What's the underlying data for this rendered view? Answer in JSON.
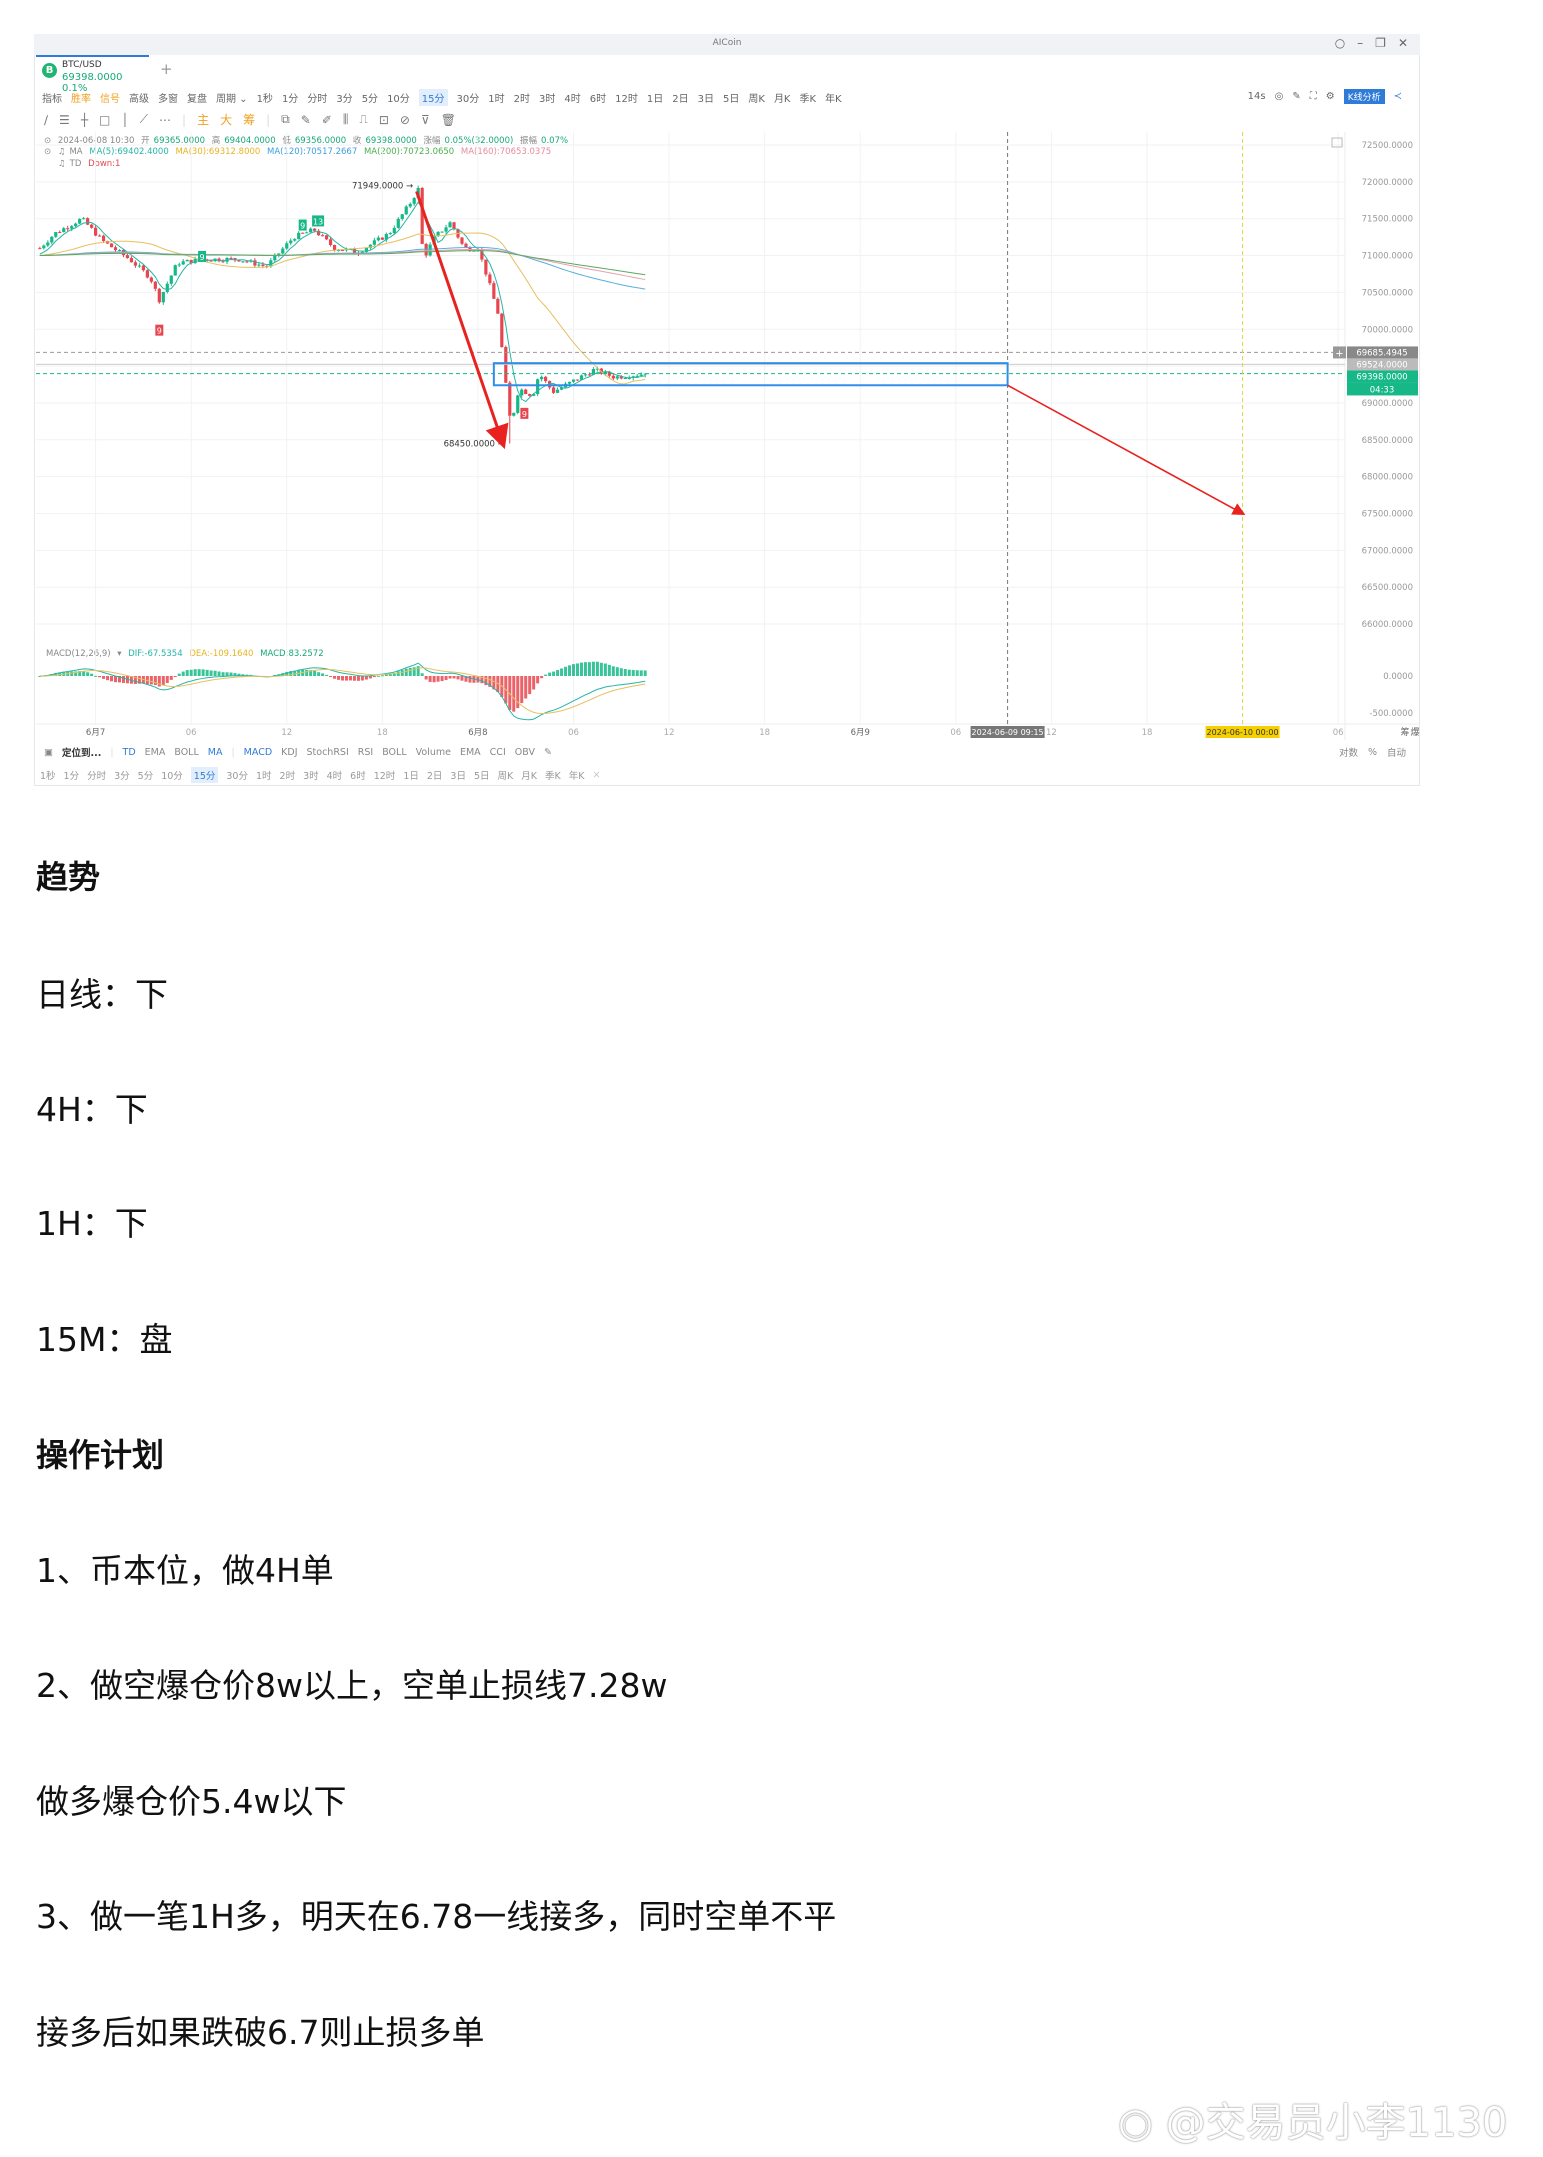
{
  "window": {
    "title": "AICoin",
    "search_icon": "search-icon",
    "controls": [
      "minimize-icon",
      "restore-icon",
      "close-icon"
    ]
  },
  "tab": {
    "coin_letter": "B",
    "pair": "BTC/USD",
    "price": "69398.0000 0.1%",
    "add": "+"
  },
  "toolbar": {
    "items": [
      "指标",
      "胜率",
      "信号",
      "高级",
      "多窗",
      "复盘",
      "周期 ⌄"
    ],
    "periods": [
      "1秒",
      "1分",
      "分时",
      "3分",
      "5分",
      "10分",
      "15分",
      "30分",
      "1时",
      "2时",
      "3时",
      "4时",
      "6时",
      "12时",
      "1日",
      "2日",
      "3日",
      "5日",
      "周K",
      "月K",
      "季K",
      "年K"
    ],
    "active_period": "15分",
    "refresh": "14s",
    "kline_button": "K线分析"
  },
  "drawbar": {
    "left_icons": [
      "∕",
      "☰",
      "┼",
      "□",
      "│",
      "⟋",
      "⋯"
    ],
    "labels": [
      "主",
      "大",
      "筹"
    ],
    "right_icons": [
      "⧉",
      "✎",
      "✐",
      "⫼",
      "⎍",
      "⊡",
      "⊘",
      "⊽",
      "🗑"
    ]
  },
  "info": {
    "date": "2024-06-08 10:30",
    "open_label": "开",
    "open": "69365.0000",
    "high_label": "高",
    "high": "69404.0000",
    "low_label": "低",
    "low": "69356.0000",
    "close_label": "收",
    "close": "69398.0000",
    "change_label": "涨幅",
    "change": "0.05%(32.0000)",
    "amp_label": "振幅",
    "amp": "0.07%",
    "ma_label": "MA",
    "ma5": "MA(5):69402.4000",
    "ma30": "MA(30):69312.8000",
    "ma120": "MA(120):70517.2667",
    "ma200": "MA(200):70723.0650",
    "ma160": "MA(160):70653.0375",
    "td_label": "TD",
    "td_value": "Down:1"
  },
  "colors": {
    "up": "#16b887",
    "down": "#e8464f",
    "ma5": "#25b5a5",
    "ma30": "#e6c060",
    "ma120": "#5aaee0",
    "ma200": "#5aa860",
    "ma160": "#e8a0b0",
    "box": "#2f8fe8",
    "arrow": "#e8231f",
    "highlight": "#f5d000"
  },
  "chart_data": {
    "type": "candlestick",
    "interval": "15分",
    "price_path": [
      {
        "t": "06-06 20:30",
        "p": 71100
      },
      {
        "t": "06-06 21:26",
        "p": 71300
      },
      {
        "t": "06-06 23:08",
        "p": 71500
      },
      {
        "t": "06-07 00:26",
        "p": 71200
      },
      {
        "t": "06-07 02:08",
        "p": 70950
      },
      {
        "t": "06-07 03:26",
        "p": 70700
      },
      {
        "t": "06-07 04:00",
        "p": 70400
      },
      {
        "t": "06-07 05:08",
        "p": 70900
      },
      {
        "t": "06-07 06:51",
        "p": 70950
      },
      {
        "t": "06-07 09:00",
        "p": 70950
      },
      {
        "t": "06-07 10:43",
        "p": 70850
      },
      {
        "t": "06-07 12:26",
        "p": 71250
      },
      {
        "t": "06-07 13:43",
        "p": 71350
      },
      {
        "t": "06-07 15:00",
        "p": 71100
      },
      {
        "t": "06-07 16:30",
        "p": 71050
      },
      {
        "t": "06-07 18:26",
        "p": 71300
      },
      {
        "t": "06-07 19:43",
        "p": 71700
      },
      {
        "t": "06-07 20:15",
        "p": 71900
      },
      {
        "t": "06-07 20:34",
        "p": 70950
      },
      {
        "t": "06-07 21:17",
        "p": 71250
      },
      {
        "t": "06-07 22:17",
        "p": 71450
      },
      {
        "t": "06-07 23:08",
        "p": 71100
      },
      {
        "t": "06-08 00:00",
        "p": 71100
      },
      {
        "t": "06-08 00:36",
        "p": 70700
      },
      {
        "t": "06-08 01:17",
        "p": 70200
      },
      {
        "t": "06-08 01:43",
        "p": 69300
      },
      {
        "t": "06-08 02:04",
        "p": 68700
      },
      {
        "t": "06-08 02:34",
        "p": 69200
      },
      {
        "t": "06-08 03:26",
        "p": 69100
      },
      {
        "t": "06-08 03:51",
        "p": 69400
      },
      {
        "t": "06-08 04:43",
        "p": 69150
      },
      {
        "t": "06-08 06:00",
        "p": 69300
      },
      {
        "t": "06-08 07:17",
        "p": 69450
      },
      {
        "t": "06-08 08:34",
        "p": 69350
      },
      {
        "t": "06-08 10:30",
        "p": 69398
      }
    ],
    "high_mark": {
      "t": "06-07 20:15",
      "p": 71949,
      "label": "71949.0000"
    },
    "low_mark": {
      "t": "06-08 02:00",
      "p": 68450,
      "label": "68450.0000"
    },
    "td_marks": [
      {
        "t": "06-07 04:00",
        "p": 69981,
        "label": "9",
        "dir": "down"
      },
      {
        "t": "06-07 06:41",
        "p": 70981,
        "label": "9",
        "dir": "up"
      },
      {
        "t": "06-07 13:00",
        "p": 71407,
        "label": "9",
        "dir": "up"
      },
      {
        "t": "06-07 13:58",
        "p": 71463,
        "label": "13",
        "dir": "up"
      },
      {
        "t": "06-08 02:55",
        "p": 68852,
        "label": "9",
        "dir": "down"
      }
    ],
    "ylim": [
      66000,
      72500
    ],
    "yticks": [
      "72500.0000",
      "72000.0000",
      "71500.0000",
      "71000.0000",
      "70500.0000",
      "70000.0000",
      "69000.0000",
      "68500.0000",
      "68000.0000",
      "67500.0000",
      "67000.0000",
      "66500.0000",
      "66000.0000"
    ],
    "price_labels": {
      "line1": "69685.4945",
      "line2": "69524.0000",
      "current": "69398.0000",
      "countdown": "04:33"
    },
    "xticks": [
      {
        "t": "06-07 00:00",
        "label": "6月7"
      },
      {
        "t": "06-07 06:00",
        "label": "06"
      },
      {
        "t": "06-07 12:00",
        "label": "12"
      },
      {
        "t": "06-07 18:00",
        "label": "18"
      },
      {
        "t": "06-08 00:00",
        "label": "6月8"
      },
      {
        "t": "06-08 06:00",
        "label": "06"
      },
      {
        "t": "06-08 12:00",
        "label": "12"
      },
      {
        "t": "06-08 18:00",
        "label": "18"
      },
      {
        "t": "06-09 00:00",
        "label": "6月9"
      },
      {
        "t": "06-09 06:00",
        "label": "06"
      },
      {
        "t": "06-09 12:00",
        "label": "12"
      },
      {
        "t": "06-09 18:00",
        "label": "18"
      },
      {
        "t": "06-10 06:00",
        "label": "06"
      }
    ],
    "cursor_time": {
      "t": "06-09 09:15",
      "label": "2024-06-09 09:15"
    },
    "target_time": {
      "t": "06-10 00:00",
      "label": "2024-06-10 00:00"
    },
    "zone": {
      "from": "06-08 01:00",
      "to": "06-09 09:15",
      "top": 69540,
      "bottom": 69240
    },
    "arrows": [
      {
        "from": {
          "t": "06-07 20:09",
          "p": 71870
        },
        "to": {
          "t": "06-08 01:34",
          "p": 68450
        }
      },
      {
        "from": {
          "t": "06-09 09:15",
          "p": 69240
        },
        "to": {
          "t": "06-10 00:00",
          "p": 67500
        }
      }
    ],
    "macd": {
      "label": "MACD(12,26,9)",
      "dif": "DIF:-67.5354",
      "dea": "DEA:-109.1640",
      "macd": "MACD:83.2572",
      "yticks": [
        "0.0000",
        "-500.0000"
      ]
    }
  },
  "indicator_bar": {
    "locate": "定位到...",
    "main": [
      "TD",
      "EMA",
      "BOLL",
      "MA"
    ],
    "sub": [
      "MACD",
      "KDJ",
      "StochRSI",
      "RSI",
      "BOLL",
      "Volume",
      "EMA",
      "CCI",
      "OBV"
    ],
    "right": [
      "对数",
      "%",
      "自动"
    ],
    "axis_right": [
      "筹",
      "爆"
    ]
  },
  "article": {
    "h1": "趋势",
    "lines1": [
      "日线：下",
      "4H：下",
      "1H：下",
      "15M：盘"
    ],
    "h2": "操作计划",
    "lines2": [
      "1、币本位，做4H单",
      "2、做空爆仓价8w以上，空单止损线7.28w",
      "做多爆仓价5.4w以下",
      "3、做一笔1H多，明天在6.78一线接多，同时空单不平",
      "接多后如果跌破6.7则止损多单"
    ]
  },
  "watermark": "@交易员小李1130"
}
